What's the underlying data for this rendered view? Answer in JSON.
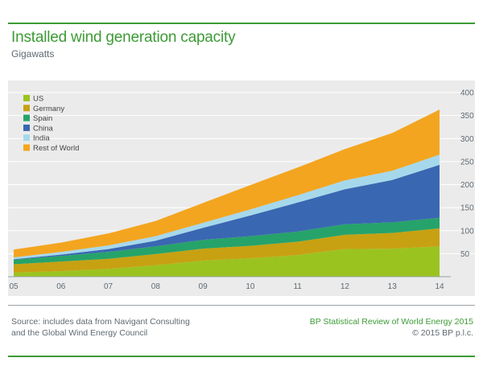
{
  "header": {
    "title": "Installed wind generation capacity",
    "subtitle": "Gigawatts"
  },
  "footer": {
    "source_line1": "Source: includes data from Navigant Consulting",
    "source_line2": "and the Global Wind Energy Council",
    "publication": "BP Statistical Review of World Energy 2015",
    "copyright": "© 2015 BP p.l.c."
  },
  "chart_data": {
    "type": "area",
    "stacked": true,
    "title": "Installed wind generation capacity",
    "subtitle": "Gigawatts",
    "xlabel": "",
    "ylabel": "",
    "x": [
      "05",
      "06",
      "07",
      "08",
      "09",
      "10",
      "11",
      "12",
      "13",
      "14"
    ],
    "ylim": [
      0,
      400
    ],
    "yticks": [
      50,
      100,
      150,
      200,
      250,
      300,
      350,
      400
    ],
    "grid": true,
    "legend_position": "top-left",
    "series": [
      {
        "name": "US",
        "color": "#9bc31f",
        "values": [
          9,
          12,
          17,
          25,
          35,
          40,
          47,
          60,
          61,
          66
        ]
      },
      {
        "name": "Germany",
        "color": "#c7a112",
        "values": [
          18,
          21,
          22,
          24,
          26,
          27,
          29,
          31,
          34,
          39
        ]
      },
      {
        "name": "Spain",
        "color": "#26a36a",
        "values": [
          10,
          12,
          15,
          17,
          19,
          21,
          22,
          23,
          23,
          23
        ]
      },
      {
        "name": "China",
        "color": "#3a67b1",
        "values": [
          1,
          3,
          6,
          12,
          26,
          45,
          63,
          76,
          92,
          115
        ]
      },
      {
        "name": "India",
        "color": "#a6d8ec",
        "values": [
          4,
          6,
          8,
          10,
          11,
          13,
          16,
          19,
          20,
          22
        ]
      },
      {
        "name": "Rest of World",
        "color": "#f3a51f",
        "values": [
          17,
          20,
          26,
          33,
          43,
          53,
          60,
          68,
          82,
          98
        ]
      }
    ]
  }
}
